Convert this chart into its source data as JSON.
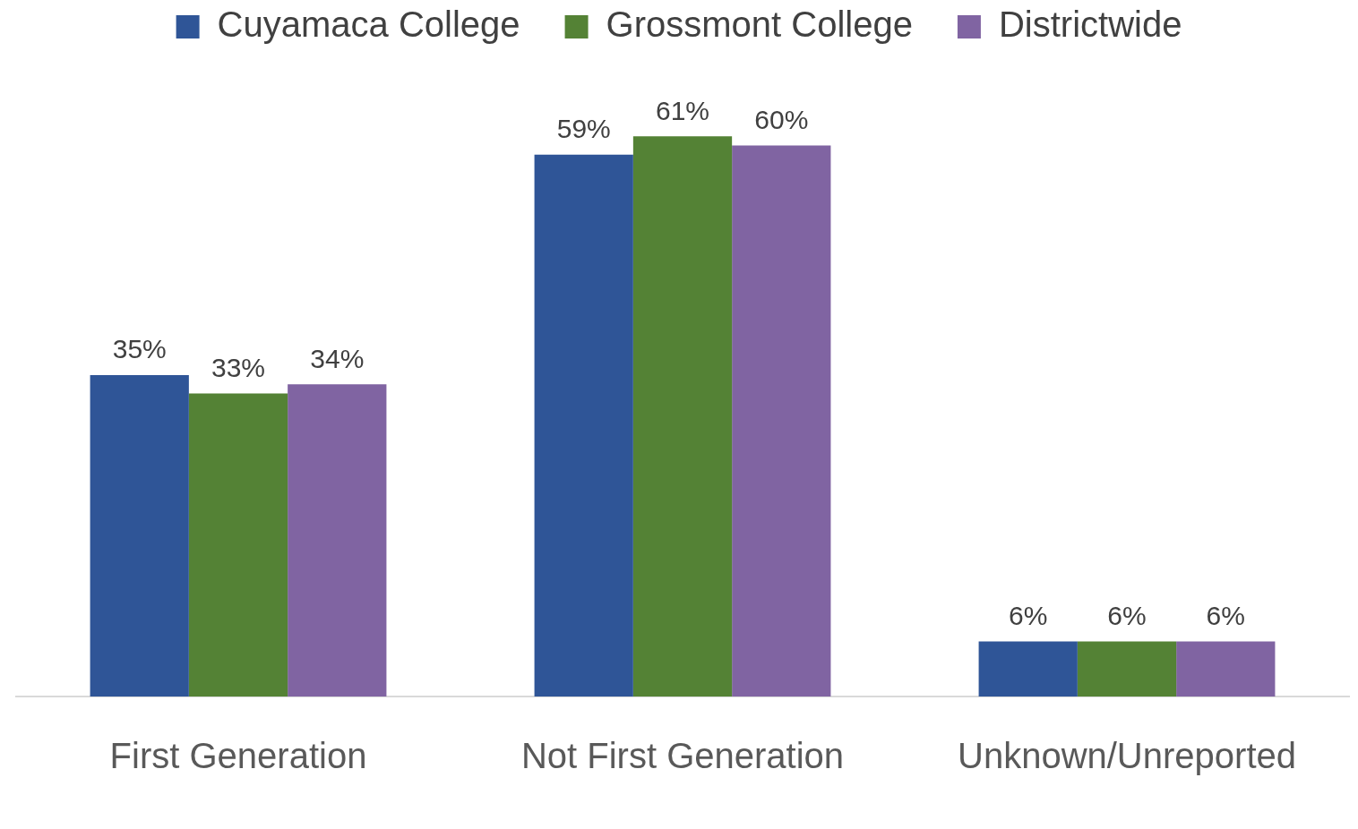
{
  "chart_data": {
    "type": "bar",
    "categories": [
      "First Generation",
      "Not First Generation",
      "Unknown/Unreported"
    ],
    "series": [
      {
        "name": "Cuyamaca College",
        "color": "#2f5597",
        "values": [
          35,
          59,
          6
        ],
        "value_labels": [
          "35%",
          "59%",
          "6%"
        ]
      },
      {
        "name": "Grossmont College",
        "color": "#548235",
        "values": [
          33,
          61,
          6
        ],
        "value_labels": [
          "33%",
          "61%",
          "6%"
        ]
      },
      {
        "name": "Districtwide",
        "color": "#8064a2",
        "values": [
          34,
          60,
          6
        ],
        "value_labels": [
          "34%",
          "60%",
          "6%"
        ]
      }
    ],
    "tick_labels": "x",
    "grid": false,
    "legend": "top"
  }
}
